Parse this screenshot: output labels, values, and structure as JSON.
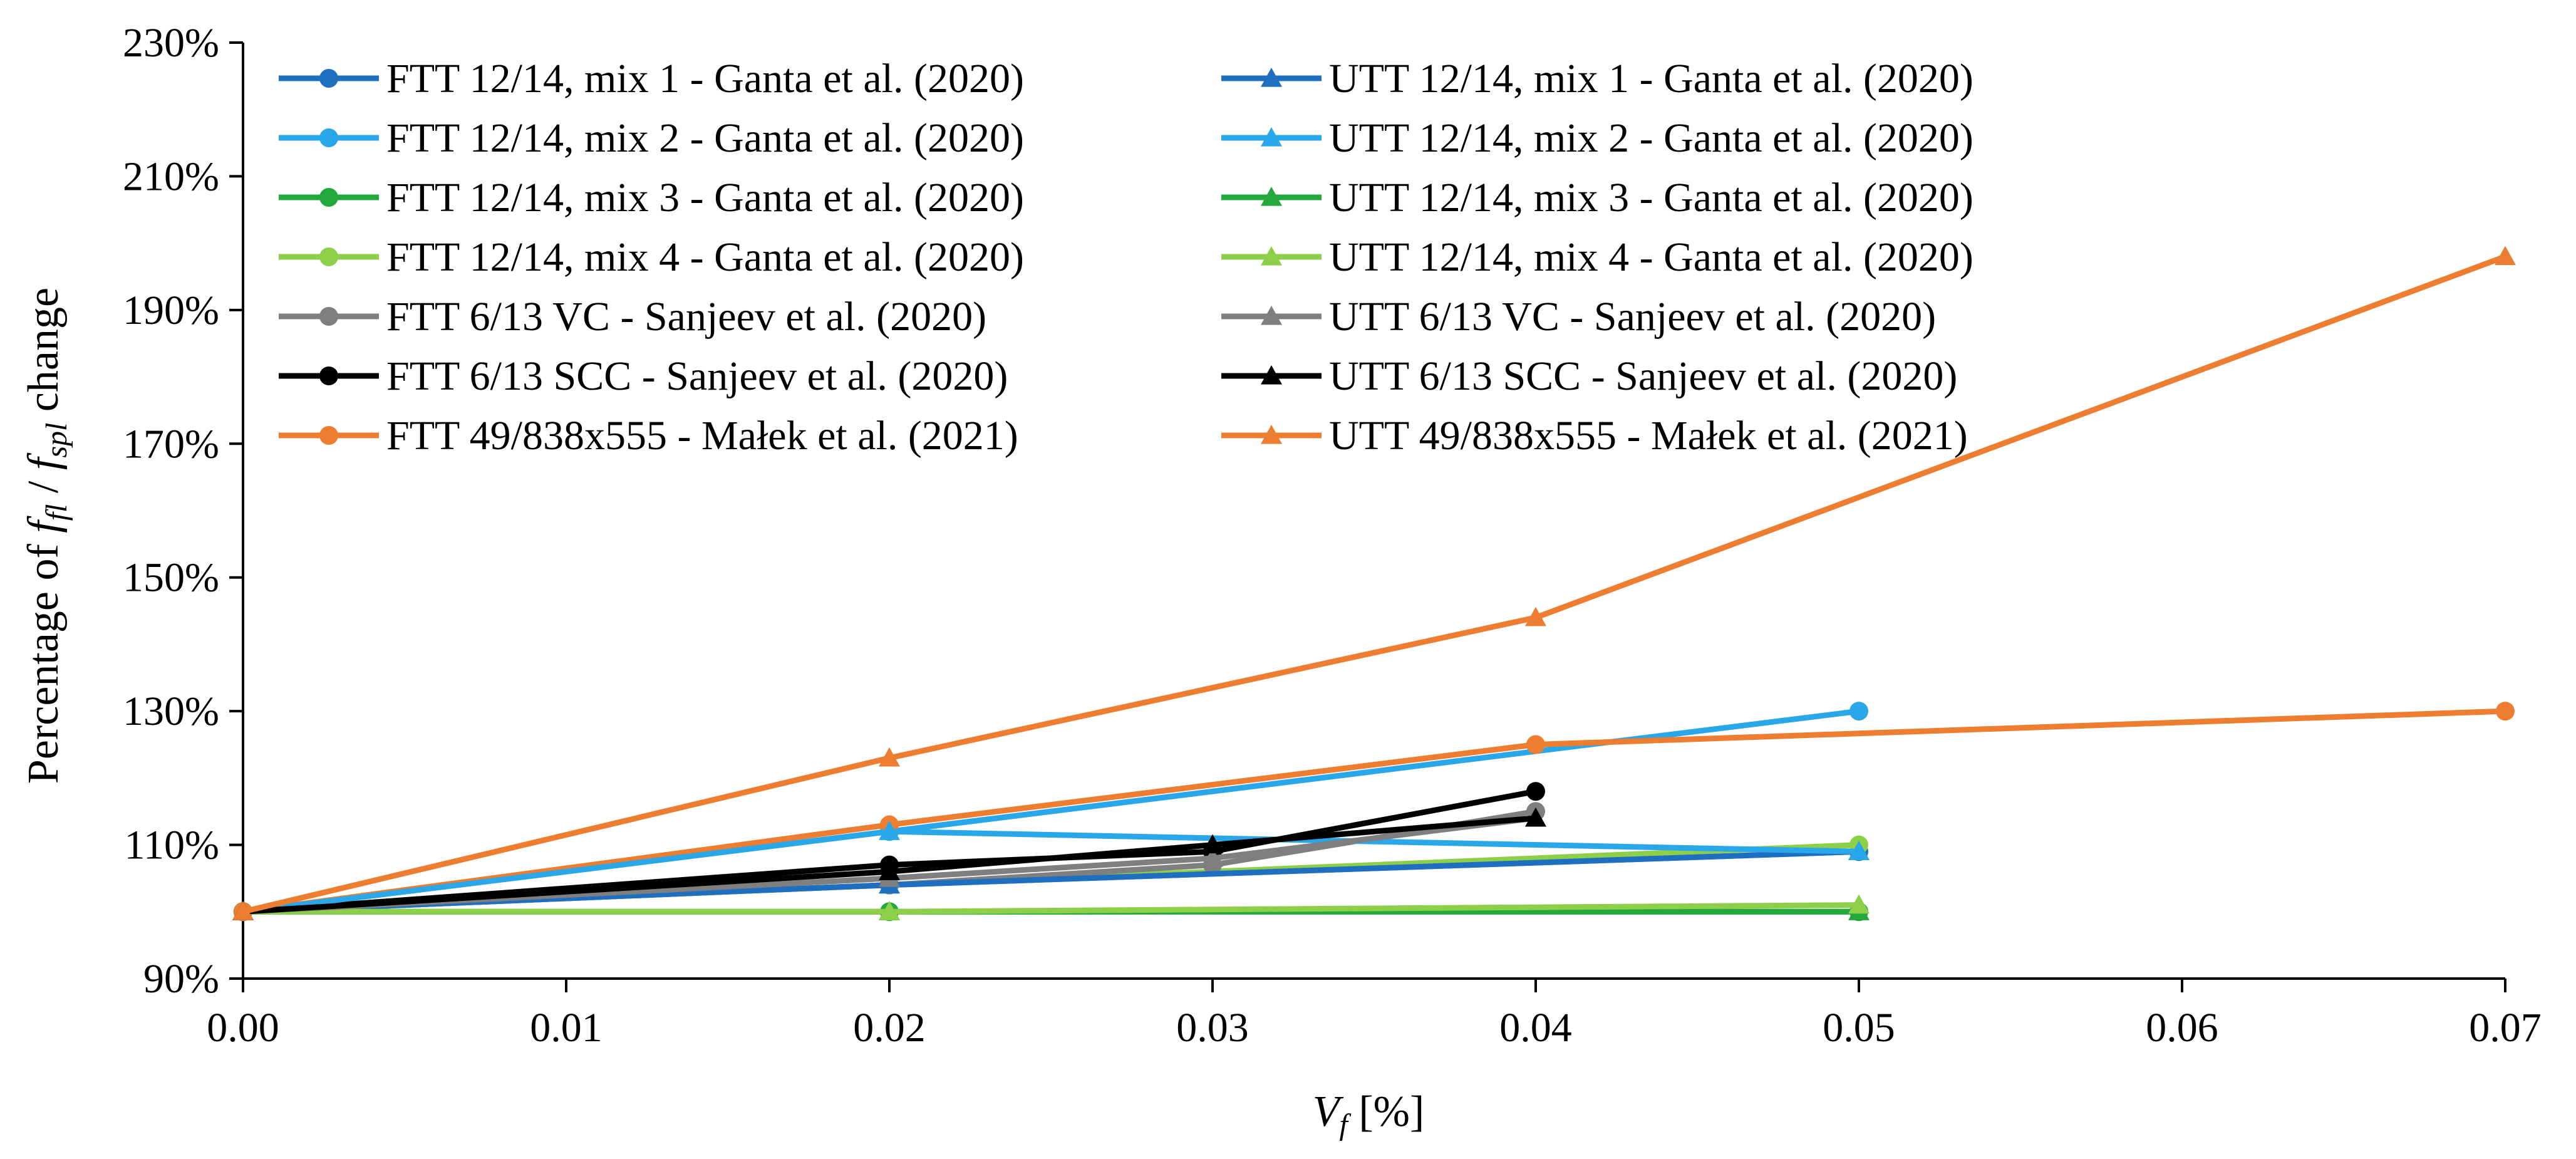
{
  "chart_data": {
    "type": "line",
    "title": "",
    "xlabel": {
      "main": "V",
      "sub": "f",
      "unit": " [%]"
    },
    "ylabel": {
      "prefix": "Percentage of ",
      "a": "f",
      "a_sub": "fl",
      "sep": " / ",
      "b": "f",
      "b_sub": "spl",
      "suffix": " change"
    },
    "xlim": [
      0,
      0.07
    ],
    "ylim": [
      90,
      230
    ],
    "x_ticks": [
      0,
      0.01,
      0.02,
      0.03,
      0.04,
      0.05,
      0.06,
      0.07
    ],
    "x_tick_labels": [
      "0.00",
      "0.01",
      "0.02",
      "0.03",
      "0.04",
      "0.05",
      "0.06",
      "0.07"
    ],
    "y_ticks": [
      90,
      110,
      130,
      150,
      170,
      190,
      210,
      230
    ],
    "y_tick_labels": [
      "90%",
      "110%",
      "130%",
      "150%",
      "170%",
      "190%",
      "210%",
      "230%"
    ],
    "grid": false,
    "legend_position": "top-left",
    "series": [
      {
        "name": "FTT 12/14, mix 1 - Ganta et al. (2020)",
        "marker": "circle",
        "color": "#1F6FC0",
        "x": [
          0,
          0.02,
          0.05
        ],
        "y": [
          100,
          104,
          109
        ]
      },
      {
        "name": "FTT 12/14, mix 2 - Ganta et al. (2020)",
        "marker": "circle",
        "color": "#2AA7E8",
        "x": [
          0,
          0.02,
          0.05
        ],
        "y": [
          100,
          112,
          130
        ]
      },
      {
        "name": "FTT 12/14, mix 3 - Ganta et al. (2020)",
        "marker": "circle",
        "color": "#23A83E",
        "x": [
          0,
          0.02,
          0.05
        ],
        "y": [
          100,
          100,
          100
        ]
      },
      {
        "name": "FTT 12/14, mix 4 - Ganta et al. (2020)",
        "marker": "circle",
        "color": "#8ECF49",
        "x": [
          0,
          0.02,
          0.05
        ],
        "y": [
          100,
          104,
          110
        ]
      },
      {
        "name": "FTT 6/13 VC - Sanjeev et al. (2020)",
        "marker": "circle",
        "color": "#7F7F7F",
        "x": [
          0,
          0.02,
          0.03,
          0.04
        ],
        "y": [
          100,
          104,
          107,
          115
        ]
      },
      {
        "name": "FTT 6/13 SCC - Sanjeev et al. (2020)",
        "marker": "circle",
        "color": "#000000",
        "x": [
          0,
          0.02,
          0.03,
          0.04
        ],
        "y": [
          100,
          107,
          109,
          118
        ]
      },
      {
        "name": "FTT 49/838x555 - Małek et al. (2021)",
        "marker": "circle",
        "color": "#ED7D31",
        "x": [
          0,
          0.02,
          0.04,
          0.07
        ],
        "y": [
          100,
          113,
          125,
          130
        ]
      },
      {
        "name": "UTT 12/14, mix 1 - Ganta et al. (2020)",
        "marker": "triangle",
        "color": "#1F6FC0",
        "x": [
          0,
          0.02,
          0.05
        ],
        "y": [
          100,
          104,
          109
        ]
      },
      {
        "name": "UTT 12/14, mix 2 - Ganta et al. (2020)",
        "marker": "triangle",
        "color": "#2AA7E8",
        "x": [
          0,
          0.02,
          0.05
        ],
        "y": [
          100,
          112,
          109
        ]
      },
      {
        "name": "UTT 12/14, mix 3 - Ganta et al. (2020)",
        "marker": "triangle",
        "color": "#23A83E",
        "x": [
          0,
          0.02,
          0.05
        ],
        "y": [
          100,
          100,
          100
        ]
      },
      {
        "name": "UTT 12/14, mix 4 - Ganta et al. (2020)",
        "marker": "triangle",
        "color": "#8ECF49",
        "x": [
          0,
          0.02,
          0.05
        ],
        "y": [
          100,
          100,
          101
        ]
      },
      {
        "name": "UTT 6/13 VC - Sanjeev et al. (2020)",
        "marker": "triangle",
        "color": "#7F7F7F",
        "x": [
          0,
          0.02,
          0.03,
          0.04
        ],
        "y": [
          100,
          105,
          108,
          114
        ]
      },
      {
        "name": "UTT 6/13 SCC - Sanjeev et al. (2020)",
        "marker": "triangle",
        "color": "#000000",
        "x": [
          0,
          0.02,
          0.03,
          0.04
        ],
        "y": [
          100,
          106,
          110,
          114
        ]
      },
      {
        "name": "UTT 49/838x555 - Małek et al. (2021)",
        "marker": "triangle",
        "color": "#ED7D31",
        "x": [
          0,
          0.02,
          0.04,
          0.07
        ],
        "y": [
          100,
          123,
          144,
          198
        ]
      }
    ]
  }
}
